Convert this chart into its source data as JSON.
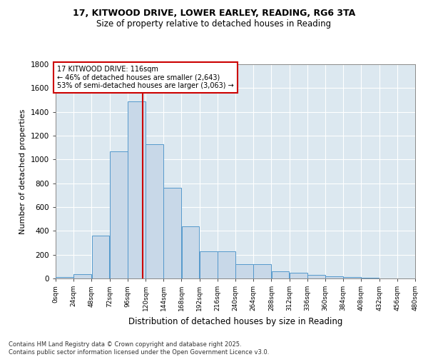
{
  "title_line1": "17, KITWOOD DRIVE, LOWER EARLEY, READING, RG6 3TA",
  "title_line2": "Size of property relative to detached houses in Reading",
  "xlabel": "Distribution of detached houses by size in Reading",
  "ylabel": "Number of detached properties",
  "bins": [
    0,
    24,
    48,
    72,
    96,
    120,
    144,
    168,
    192,
    216,
    240,
    264,
    288,
    312,
    336,
    360,
    384,
    408,
    432,
    456,
    480
  ],
  "bar_heights": [
    10,
    35,
    360,
    1070,
    1490,
    1130,
    760,
    440,
    230,
    230,
    120,
    120,
    60,
    50,
    30,
    20,
    15,
    5,
    2,
    1
  ],
  "bar_color": "#c8d8e8",
  "bar_edge_color": "#5599cc",
  "property_size": 116,
  "annotation_title": "17 KITWOOD DRIVE: 116sqm",
  "annotation_line2": "← 46% of detached houses are smaller (2,643)",
  "annotation_line3": "53% of semi-detached houses are larger (3,063) →",
  "vline_color": "#cc0000",
  "annotation_box_color": "#ffffff",
  "annotation_box_edge": "#cc0000",
  "plot_bg_color": "#dce8f0",
  "fig_bg_color": "#ffffff",
  "grid_color": "#ffffff",
  "ylim": [
    0,
    1800
  ],
  "xlim": [
    0,
    480
  ],
  "tick_labels": [
    "0sqm",
    "24sqm",
    "48sqm",
    "72sqm",
    "96sqm",
    "120sqm",
    "144sqm",
    "168sqm",
    "192sqm",
    "216sqm",
    "240sqm",
    "264sqm",
    "288sqm",
    "312sqm",
    "336sqm",
    "360sqm",
    "384sqm",
    "408sqm",
    "432sqm",
    "456sqm",
    "480sqm"
  ],
  "footnote1": "Contains HM Land Registry data © Crown copyright and database right 2025.",
  "footnote2": "Contains public sector information licensed under the Open Government Licence v3.0."
}
